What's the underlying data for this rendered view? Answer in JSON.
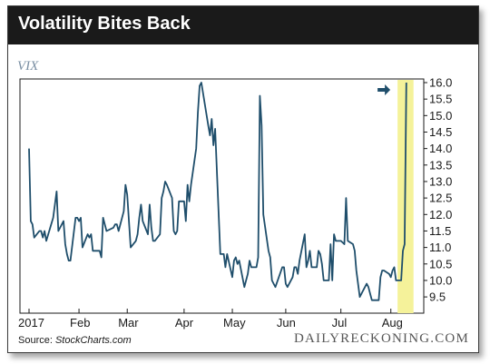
{
  "colors": {
    "line": "#1f4e6b",
    "highlight": "#f5f29a",
    "series_label": "#7a8fa3",
    "arrow": "#1f4e6b",
    "title_bar": "#1a1a1a"
  },
  "header": {
    "title": "Volatility Bites Back"
  },
  "footer": {
    "source_prefix": "Source: ",
    "source_name": "StockCharts.com",
    "publisher": "DAILYRECKONING.COM"
  },
  "chart_data": {
    "type": "line",
    "title": "Volatility Bites Back",
    "series_label": "VIX",
    "xlabel": "",
    "ylabel": "",
    "x_ticks": [
      "2017",
      "Feb",
      "Mar",
      "Apr",
      "May",
      "Jun",
      "Jul",
      "Aug"
    ],
    "y_ticks": [
      9.5,
      10.0,
      10.5,
      11.0,
      11.5,
      12.0,
      12.5,
      13.0,
      13.5,
      14.0,
      14.5,
      15.0,
      15.5,
      16.0
    ],
    "y_tick_labels": [
      "9.5",
      "10.0",
      "10.5",
      "11.0",
      "11.5",
      "12.0",
      "12.5",
      "13.0",
      "13.5",
      "14.0",
      "14.5",
      "15.0",
      "15.5",
      "16.0"
    ],
    "ylim": [
      9.2,
      16.0
    ],
    "y_axis_side": "right",
    "grid": false,
    "highlight_region": {
      "from_date": "2017-08-07",
      "to_date": "2017-08-11"
    },
    "annotations": [
      {
        "type": "arrow",
        "points_to": "highlight_region",
        "at_value": 16.0
      }
    ],
    "series": [
      {
        "values": [
          [
            "2017-01-03",
            14.0
          ],
          [
            "2017-01-04",
            11.8
          ],
          [
            "2017-01-05",
            11.7
          ],
          [
            "2017-01-06",
            11.3
          ],
          [
            "2017-01-09",
            11.5
          ],
          [
            "2017-01-10",
            11.5
          ],
          [
            "2017-01-11",
            11.3
          ],
          [
            "2017-01-12",
            11.5
          ],
          [
            "2017-01-13",
            11.2
          ],
          [
            "2017-01-17",
            11.9
          ],
          [
            "2017-01-18",
            12.3
          ],
          [
            "2017-01-19",
            12.7
          ],
          [
            "2017-01-20",
            11.5
          ],
          [
            "2017-01-23",
            11.8
          ],
          [
            "2017-01-24",
            11.1
          ],
          [
            "2017-01-25",
            10.8
          ],
          [
            "2017-01-26",
            10.6
          ],
          [
            "2017-01-27",
            10.6
          ],
          [
            "2017-01-30",
            11.9
          ],
          [
            "2017-01-31",
            11.9
          ],
          [
            "2017-02-01",
            11.8
          ],
          [
            "2017-02-02",
            11.9
          ],
          [
            "2017-02-03",
            11.0
          ],
          [
            "2017-02-06",
            11.4
          ],
          [
            "2017-02-07",
            11.3
          ],
          [
            "2017-02-08",
            11.4
          ],
          [
            "2017-02-09",
            10.9
          ],
          [
            "2017-02-10",
            10.9
          ],
          [
            "2017-02-13",
            10.9
          ],
          [
            "2017-02-14",
            10.7
          ],
          [
            "2017-02-15",
            11.9
          ],
          [
            "2017-02-16",
            11.7
          ],
          [
            "2017-02-17",
            11.5
          ],
          [
            "2017-02-21",
            11.6
          ],
          [
            "2017-02-22",
            11.7
          ],
          [
            "2017-02-23",
            11.7
          ],
          [
            "2017-02-24",
            11.5
          ],
          [
            "2017-02-27",
            12.1
          ],
          [
            "2017-02-28",
            12.9
          ],
          [
            "2017-03-01",
            12.6
          ],
          [
            "2017-03-02",
            11.8
          ],
          [
            "2017-03-03",
            11.0
          ],
          [
            "2017-03-06",
            11.2
          ],
          [
            "2017-03-07",
            11.4
          ],
          [
            "2017-03-08",
            11.9
          ],
          [
            "2017-03-09",
            12.3
          ],
          [
            "2017-03-10",
            11.8
          ],
          [
            "2017-03-13",
            11.4
          ],
          [
            "2017-03-14",
            12.3
          ],
          [
            "2017-03-15",
            11.6
          ],
          [
            "2017-03-16",
            11.2
          ],
          [
            "2017-03-17",
            11.2
          ],
          [
            "2017-03-20",
            11.4
          ],
          [
            "2017-03-21",
            12.5
          ],
          [
            "2017-03-22",
            12.7
          ],
          [
            "2017-03-23",
            13.0
          ],
          [
            "2017-03-24",
            12.9
          ],
          [
            "2017-03-27",
            12.5
          ],
          [
            "2017-03-28",
            11.5
          ],
          [
            "2017-03-29",
            11.4
          ],
          [
            "2017-03-30",
            11.5
          ],
          [
            "2017-03-31",
            12.4
          ],
          [
            "2017-04-03",
            12.4
          ],
          [
            "2017-04-04",
            11.8
          ],
          [
            "2017-04-05",
            12.9
          ],
          [
            "2017-04-06",
            12.4
          ],
          [
            "2017-04-07",
            12.9
          ],
          [
            "2017-04-10",
            14.0
          ],
          [
            "2017-04-11",
            15.1
          ],
          [
            "2017-04-12",
            15.9
          ],
          [
            "2017-04-13",
            16.0
          ],
          [
            "2017-04-17",
            14.7
          ],
          [
            "2017-04-18",
            14.4
          ],
          [
            "2017-04-19",
            14.9
          ],
          [
            "2017-04-20",
            14.1
          ],
          [
            "2017-04-21",
            14.6
          ],
          [
            "2017-04-24",
            10.8
          ],
          [
            "2017-04-25",
            10.8
          ],
          [
            "2017-04-26",
            10.8
          ],
          [
            "2017-04-27",
            10.4
          ],
          [
            "2017-04-28",
            10.8
          ],
          [
            "2017-05-01",
            10.1
          ],
          [
            "2017-05-02",
            10.6
          ],
          [
            "2017-05-03",
            10.7
          ],
          [
            "2017-05-04",
            10.5
          ],
          [
            "2017-05-05",
            10.6
          ],
          [
            "2017-05-08",
            9.8
          ],
          [
            "2017-05-09",
            10.0
          ],
          [
            "2017-05-10",
            10.2
          ],
          [
            "2017-05-11",
            10.6
          ],
          [
            "2017-05-12",
            10.4
          ],
          [
            "2017-05-15",
            10.4
          ],
          [
            "2017-05-16",
            10.7
          ],
          [
            "2017-05-17",
            15.6
          ],
          [
            "2017-05-18",
            14.7
          ],
          [
            "2017-05-19",
            12.0
          ],
          [
            "2017-05-22",
            10.9
          ],
          [
            "2017-05-23",
            10.7
          ],
          [
            "2017-05-24",
            10.0
          ],
          [
            "2017-05-25",
            9.9
          ],
          [
            "2017-05-26",
            9.8
          ],
          [
            "2017-05-30",
            10.4
          ],
          [
            "2017-05-31",
            10.4
          ],
          [
            "2017-06-01",
            9.9
          ],
          [
            "2017-06-02",
            9.8
          ],
          [
            "2017-06-05",
            10.1
          ],
          [
            "2017-06-06",
            10.4
          ],
          [
            "2017-06-07",
            10.4
          ],
          [
            "2017-06-08",
            10.2
          ],
          [
            "2017-06-09",
            10.6
          ],
          [
            "2017-06-12",
            11.4
          ],
          [
            "2017-06-13",
            10.4
          ],
          [
            "2017-06-14",
            10.6
          ],
          [
            "2017-06-15",
            10.9
          ],
          [
            "2017-06-16",
            10.4
          ],
          [
            "2017-06-19",
            10.4
          ],
          [
            "2017-06-20",
            10.9
          ],
          [
            "2017-06-21",
            10.8
          ],
          [
            "2017-06-22",
            10.5
          ],
          [
            "2017-06-23",
            10.0
          ],
          [
            "2017-06-26",
            10.0
          ],
          [
            "2017-06-27",
            11.1
          ],
          [
            "2017-06-28",
            10.0
          ],
          [
            "2017-06-29",
            11.4
          ],
          [
            "2017-06-30",
            11.2
          ],
          [
            "2017-07-03",
            11.2
          ],
          [
            "2017-07-05",
            11.1
          ],
          [
            "2017-07-06",
            12.5
          ],
          [
            "2017-07-07",
            11.2
          ],
          [
            "2017-07-10",
            11.1
          ],
          [
            "2017-07-11",
            10.9
          ],
          [
            "2017-07-12",
            10.3
          ],
          [
            "2017-07-13",
            9.9
          ],
          [
            "2017-07-14",
            9.5
          ],
          [
            "2017-07-17",
            9.8
          ],
          [
            "2017-07-18",
            9.9
          ],
          [
            "2017-07-19",
            9.8
          ],
          [
            "2017-07-20",
            9.6
          ],
          [
            "2017-07-21",
            9.4
          ],
          [
            "2017-07-24",
            9.4
          ],
          [
            "2017-07-25",
            9.4
          ],
          [
            "2017-07-26",
            10.1
          ],
          [
            "2017-07-27",
            10.3
          ],
          [
            "2017-07-28",
            10.3
          ],
          [
            "2017-07-31",
            10.2
          ],
          [
            "2017-08-01",
            10.1
          ],
          [
            "2017-08-02",
            10.3
          ],
          [
            "2017-08-03",
            10.4
          ],
          [
            "2017-08-04",
            10.0
          ],
          [
            "2017-08-07",
            10.0
          ],
          [
            "2017-08-08",
            10.9
          ],
          [
            "2017-08-09",
            11.1
          ],
          [
            "2017-08-10",
            16.0
          ]
        ]
      }
    ]
  }
}
